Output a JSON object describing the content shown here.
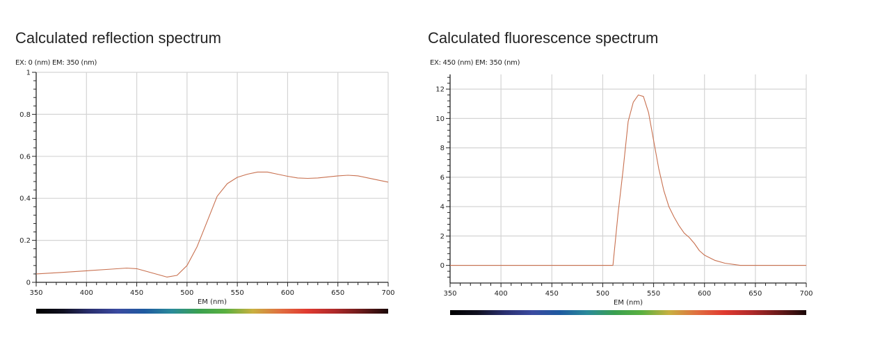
{
  "charts": [
    {
      "title": "Calculated reflection spectrum",
      "subtitle": "EX: 0 (nm) EM: 350 (nm)",
      "xlabel": "EM (nm)"
    },
    {
      "title": "Calculated fluorescence spectrum",
      "subtitle": "EX: 450 (nm) EM: 350 (nm)",
      "xlabel": "EM (nm)"
    }
  ],
  "colors": {
    "line": "#c8704f",
    "grid": "#d4d4d4",
    "axis": "#222222",
    "spectrum_bar": [
      "#000000",
      "#101020",
      "#2a2f70",
      "#3a4aa0",
      "#1e5aa0",
      "#2a8a9a",
      "#3aa050",
      "#5ab040",
      "#c8b040",
      "#e07040",
      "#e03a30",
      "#b02a2a",
      "#6a1a1a",
      "#1a0808"
    ]
  },
  "chart_data": [
    {
      "type": "line",
      "title": "Calculated reflection spectrum",
      "subtitle": "EX: 0 (nm) EM: 350 (nm)",
      "xlabel": "EM (nm)",
      "ylabel": "",
      "xlim": [
        350,
        700
      ],
      "ylim": [
        0,
        1
      ],
      "xticks": [
        350,
        400,
        450,
        500,
        550,
        600,
        650,
        700
      ],
      "yticks": [
        0,
        0.2,
        0.4,
        0.6,
        0.8,
        1
      ],
      "ytick_labels": [
        "0",
        "0.2",
        "0.4",
        "0.6",
        "0.8",
        "1"
      ],
      "grid": true,
      "legend": null,
      "x": [
        350,
        375,
        400,
        425,
        440,
        450,
        465,
        480,
        490,
        500,
        510,
        520,
        530,
        540,
        550,
        560,
        570,
        580,
        590,
        600,
        610,
        620,
        630,
        640,
        650,
        660,
        670,
        680,
        690,
        700
      ],
      "series": [
        {
          "name": "reflection",
          "values": [
            0.04,
            0.047,
            0.055,
            0.063,
            0.068,
            0.065,
            0.045,
            0.025,
            0.033,
            0.08,
            0.17,
            0.29,
            0.41,
            0.47,
            0.5,
            0.515,
            0.525,
            0.525,
            0.515,
            0.505,
            0.497,
            0.495,
            0.497,
            0.502,
            0.507,
            0.51,
            0.507,
            0.497,
            0.487,
            0.477
          ]
        }
      ]
    },
    {
      "type": "line",
      "title": "Calculated fluorescence spectrum",
      "subtitle": "EX: 450 (nm) EM: 350 (nm)",
      "xlabel": "EM (nm)",
      "ylabel": "",
      "xlim": [
        350,
        700
      ],
      "ylim": [
        -1.2,
        13
      ],
      "xticks": [
        350,
        400,
        450,
        500,
        550,
        600,
        650,
        700
      ],
      "yticks": [
        0,
        2,
        4,
        6,
        8,
        10,
        12
      ],
      "ytick_labels": [
        "0",
        "2",
        "4",
        "6",
        "8",
        "10",
        "12"
      ],
      "grid": true,
      "legend": null,
      "x": [
        350,
        400,
        450,
        500,
        510,
        515,
        520,
        525,
        530,
        535,
        540,
        545,
        550,
        555,
        560,
        565,
        570,
        575,
        580,
        585,
        590,
        595,
        600,
        610,
        620,
        625,
        630,
        635,
        650,
        700
      ],
      "series": [
        {
          "name": "fluorescence",
          "values": [
            0,
            0,
            0,
            0,
            0,
            3.5,
            6.5,
            9.8,
            11.1,
            11.6,
            11.5,
            10.4,
            8.5,
            6.6,
            5.1,
            4.0,
            3.3,
            2.7,
            2.2,
            1.9,
            1.5,
            1.0,
            0.7,
            0.35,
            0.15,
            0.1,
            0.05,
            0,
            0,
            0
          ]
        }
      ]
    }
  ]
}
